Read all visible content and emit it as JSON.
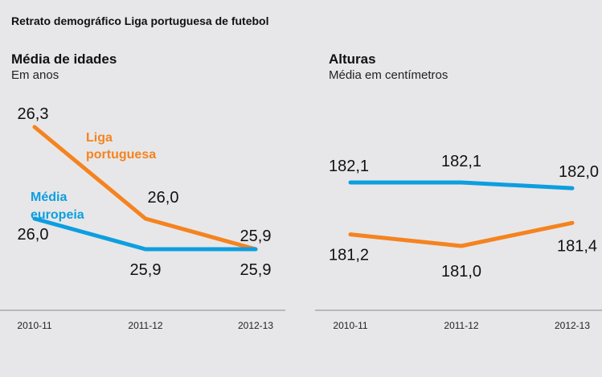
{
  "title": "Retrato demográfico Liga portuguesa de futebol",
  "colors": {
    "liga": "#f5831f",
    "europa": "#0d9ee0",
    "axis": "#a9a9ab"
  },
  "chart_data": [
    {
      "type": "line",
      "title": "Média de idades",
      "subtitle": "Em anos",
      "categories": [
        "2010-11",
        "2011-12",
        "2012-13"
      ],
      "xlabel": "",
      "ylabel": "",
      "ylim": [
        25.8,
        26.35
      ],
      "grid": false,
      "series": [
        {
          "name": "Liga portuguesa",
          "legend_lines": [
            "Liga",
            "portuguesa"
          ],
          "color": "#f5831f",
          "values": [
            26.3,
            26.0,
            25.9
          ],
          "labels": [
            "26,3",
            "26,0",
            "25,9"
          ]
        },
        {
          "name": "Média europeia",
          "legend_lines": [
            "Média",
            "europeia"
          ],
          "color": "#0d9ee0",
          "values": [
            26.0,
            25.9,
            25.9
          ],
          "labels": [
            "26,0",
            "25,9",
            "25,9"
          ]
        }
      ]
    },
    {
      "type": "line",
      "title": "Alturas",
      "subtitle": "Média em centímetros",
      "categories": [
        "2010-11",
        "2011-12",
        "2012-13"
      ],
      "xlabel": "",
      "ylabel": "",
      "ylim": [
        180.5,
        182.3
      ],
      "grid": false,
      "series": [
        {
          "name": "Média europeia",
          "color": "#0d9ee0",
          "values": [
            182.1,
            182.1,
            182.0
          ],
          "labels": [
            "182,1",
            "182,1",
            "182,0"
          ]
        },
        {
          "name": "Liga portuguesa",
          "color": "#f5831f",
          "values": [
            181.2,
            181.0,
            181.4
          ],
          "labels": [
            "181,2",
            "181,0",
            "181,4"
          ]
        }
      ]
    }
  ]
}
